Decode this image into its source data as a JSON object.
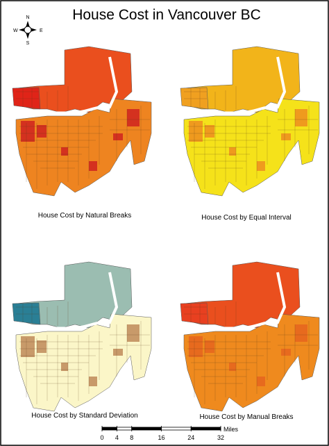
{
  "title": "House Cost in Vancouver BC",
  "compass": {
    "north": "N",
    "south": "S",
    "east": "E",
    "west": "W"
  },
  "maps": [
    {
      "caption": "House Cost by Natural Breaks"
    },
    {
      "caption": "House Cost by Equal Interval"
    },
    {
      "caption": "House Cost by Standard Deviation"
    },
    {
      "caption": "House Cost by Manual Breaks"
    }
  ],
  "scale_bar": {
    "unit": "Miles",
    "ticks": [
      0,
      4,
      8,
      16,
      24,
      32
    ]
  }
}
